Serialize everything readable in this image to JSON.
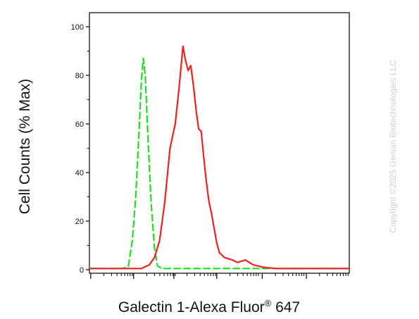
{
  "chart_data": {
    "type": "line",
    "title": "",
    "xlabel": "Galectin 1-Alexa Fluor",
    "xlabel_sup": "®",
    "xlabel_suffix": " 647",
    "ylabel": "Cell Counts (% Max)",
    "ylim": [
      0,
      100
    ],
    "xlim": [
      0,
      1
    ],
    "xscale": "log (biexponential), no tick labels",
    "y_ticks": [
      0,
      20,
      40,
      60,
      80,
      100
    ],
    "grid": false,
    "legend": "none",
    "series": [
      {
        "style": "dashed",
        "color": "#22dd22",
        "points": [
          [
            0.0,
            0.5
          ],
          [
            0.13,
            0.5
          ],
          [
            0.15,
            1.5
          ],
          [
            0.165,
            12
          ],
          [
            0.178,
            30
          ],
          [
            0.19,
            55
          ],
          [
            0.2,
            78
          ],
          [
            0.207,
            87
          ],
          [
            0.215,
            80
          ],
          [
            0.225,
            55
          ],
          [
            0.237,
            28
          ],
          [
            0.25,
            9
          ],
          [
            0.262,
            1.5
          ],
          [
            0.28,
            0.5
          ],
          [
            1.0,
            0.5
          ]
        ]
      },
      {
        "style": "solid",
        "color": "#ee2222",
        "points": [
          [
            0.0,
            0.5
          ],
          [
            0.2,
            0.5
          ],
          [
            0.23,
            2
          ],
          [
            0.25,
            5
          ],
          [
            0.27,
            12
          ],
          [
            0.29,
            28
          ],
          [
            0.31,
            50
          ],
          [
            0.33,
            60
          ],
          [
            0.345,
            75
          ],
          [
            0.36,
            92
          ],
          [
            0.37,
            86
          ],
          [
            0.38,
            82
          ],
          [
            0.39,
            84
          ],
          [
            0.4,
            76
          ],
          [
            0.41,
            66
          ],
          [
            0.42,
            58
          ],
          [
            0.43,
            57
          ],
          [
            0.44,
            46
          ],
          [
            0.45,
            36
          ],
          [
            0.46,
            28
          ],
          [
            0.47,
            23
          ],
          [
            0.48,
            17
          ],
          [
            0.49,
            11
          ],
          [
            0.5,
            7
          ],
          [
            0.52,
            5
          ],
          [
            0.55,
            4
          ],
          [
            0.57,
            3
          ],
          [
            0.6,
            4
          ],
          [
            0.63,
            2
          ],
          [
            0.67,
            1
          ],
          [
            0.72,
            0.5
          ],
          [
            1.0,
            0.5
          ]
        ]
      }
    ]
  },
  "watermark": "Copyright ©2025 Genuin Biotechnologies LLC"
}
